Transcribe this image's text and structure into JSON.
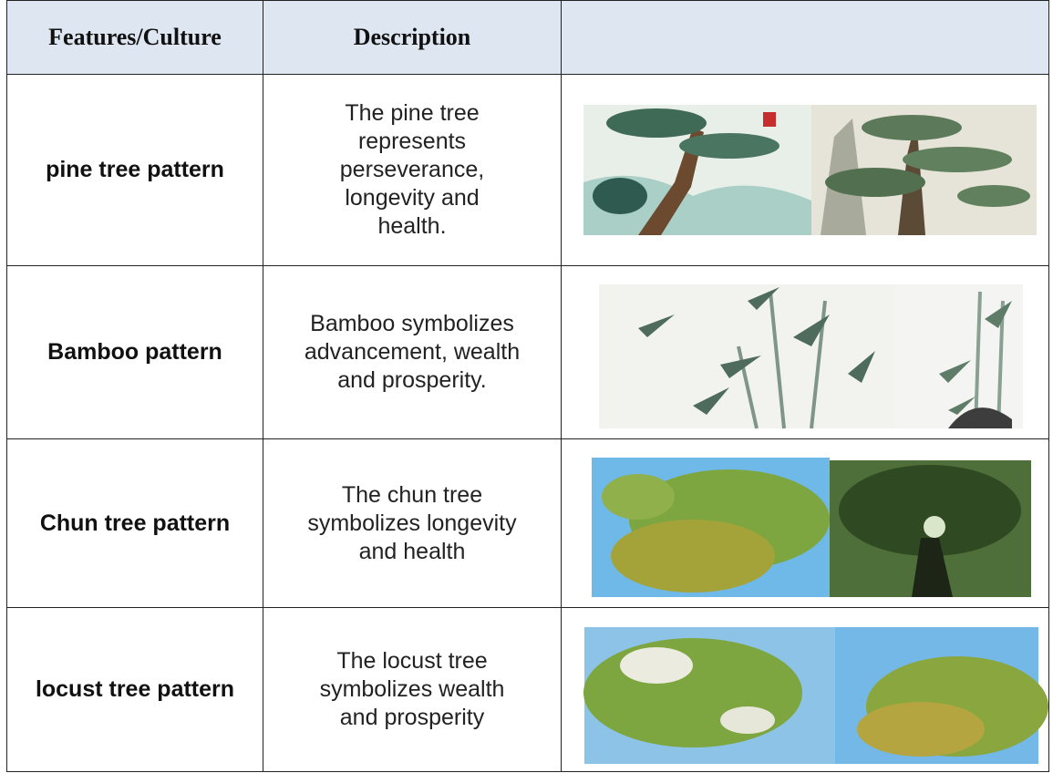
{
  "table": {
    "header": [
      "Features/Culture",
      "Description"
    ],
    "rows": [
      [
        "pine tree pattern",
        "The pine tree represents perseverance, longevity and health."
      ],
      [
        "Bamboo pattern",
        "Bamboo symbolizes advancement, wealth and prosperity."
      ],
      [
        "Chun tree pattern",
        "The chun tree symbolizes longevity and health"
      ],
      [
        "locust tree pattern",
        "The locust tree symbolizes wealth and prosperity"
      ]
    ]
  }
}
